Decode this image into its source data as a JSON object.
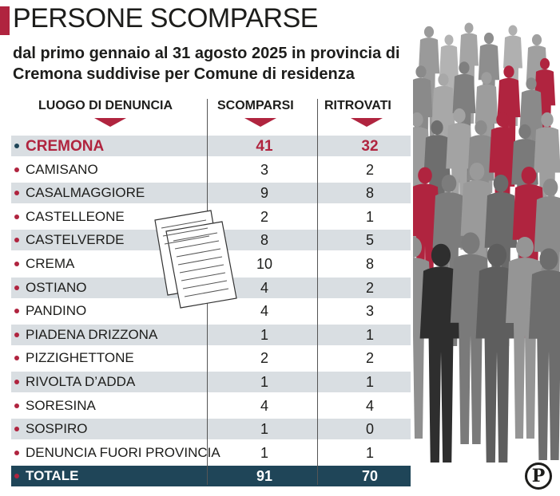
{
  "title": "PERSONE SCOMPARSE",
  "subtitle": "dal primo gennaio al 31 agosto 2025 in provincia di Cremona suddivise per Comune di residenza",
  "headers": {
    "place": "LUOGO DI DENUNCIA",
    "missing": "SCOMPARSI",
    "found": "RITROVATI"
  },
  "logo": "P",
  "colors": {
    "accent": "#b0243f",
    "navy": "#1f4558",
    "shade": "#d9dee2"
  },
  "chart_data": {
    "type": "table",
    "title": "PERSONE SCOMPARSE",
    "subtitle": "dal primo gennaio al 31 agosto 2025 in provincia di Cremona suddivise per Comune di residenza",
    "columns": [
      "LUOGO DI DENUNCIA",
      "SCOMPARSI",
      "RITROVATI"
    ],
    "rows": [
      {
        "place": "CREMONA",
        "missing": "41",
        "found": "32"
      },
      {
        "place": "CAMISANO",
        "missing": "3",
        "found": "2"
      },
      {
        "place": "CASALMAGGIORE",
        "missing": "9",
        "found": "8"
      },
      {
        "place": "CASTELLEONE",
        "missing": "2",
        "found": "1"
      },
      {
        "place": "CASTELVERDE",
        "missing": "8",
        "found": "5"
      },
      {
        "place": "CREMA",
        "missing": "10",
        "found": "8"
      },
      {
        "place": "OSTIANO",
        "missing": "4",
        "found": "2"
      },
      {
        "place": "PANDINO",
        "missing": "4",
        "found": "3"
      },
      {
        "place": "PIADENA DRIZZONA",
        "missing": "1",
        "found": "1"
      },
      {
        "place": "PIZZIGHETTONE",
        "missing": "2",
        "found": "2"
      },
      {
        "place": "RIVOLTA D’ADDA",
        "missing": "1",
        "found": "1"
      },
      {
        "place": "SORESINA",
        "missing": "4",
        "found": "4"
      },
      {
        "place": "SOSPIRO",
        "missing": "1",
        "found": "0"
      },
      {
        "place": "DENUNCIA FUORI PROVINCIA",
        "missing": "1",
        "found": "1"
      }
    ],
    "total": {
      "place": "TOTALE",
      "missing": "91",
      "found": "70"
    }
  }
}
